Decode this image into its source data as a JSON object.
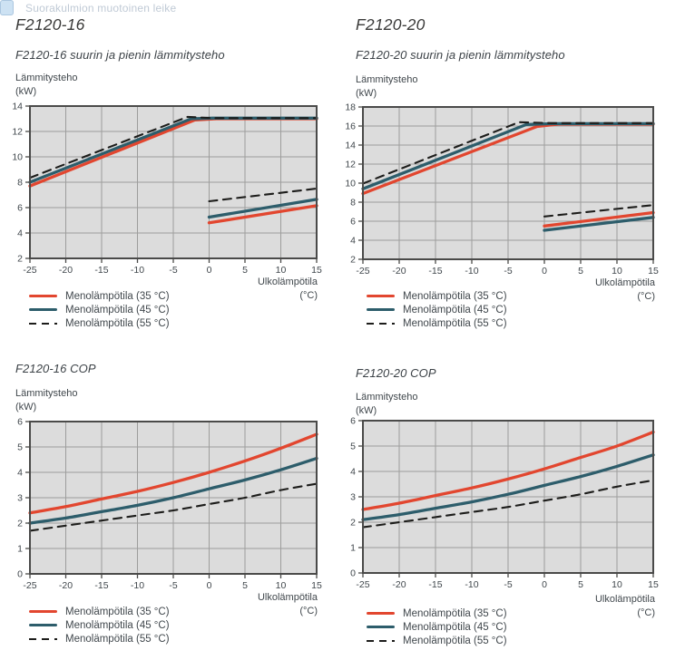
{
  "watermark": {
    "text": "Suorakulmion muotoinen leike"
  },
  "colors": {
    "red": "#e2462f",
    "teal": "#2d5d6b",
    "black": "#1d1d1b",
    "grid": "#9d9d9c",
    "plot_bg": "#dcdcdc",
    "axis": "#4a4a49",
    "text": "#40474c"
  },
  "chart_data": [
    {
      "id": "f2120-16-output",
      "type": "line",
      "heading": "F2120-16",
      "title": "F2120-16 suurin ja pienin lämmitysteho",
      "ylabel": [
        "Lämmitysteho",
        "(kW)"
      ],
      "xlabel": [
        "Ulkolämpötila",
        "(°C)"
      ],
      "x_range": [
        -25,
        15
      ],
      "y_range": [
        2,
        14
      ],
      "x_ticks": [
        -25,
        -20,
        -15,
        -10,
        -5,
        0,
        5,
        10,
        15
      ],
      "y_ticks": [
        2,
        4,
        6,
        8,
        10,
        12,
        14
      ],
      "grid": true,
      "legend_position": "bottom-left",
      "series": [
        {
          "name": "Menolämpötila (35 °C)",
          "color_key": "red",
          "dash": false,
          "smooth": false,
          "segments": [
            [
              [
                -25,
                7.7
              ],
              [
                -2,
                12.9
              ],
              [
                1,
                13.0
              ],
              [
                15,
                13.0
              ]
            ],
            [
              [
                0,
                4.8
              ],
              [
                15,
                6.15
              ]
            ]
          ]
        },
        {
          "name": "Menolämpötila (45 °C)",
          "color_key": "teal",
          "dash": false,
          "smooth": false,
          "segments": [
            [
              [
                -25,
                8.0
              ],
              [
                -2.5,
                13.0
              ],
              [
                0.5,
                13.05
              ],
              [
                15,
                13.05
              ]
            ],
            [
              [
                0,
                5.25
              ],
              [
                15,
                6.65
              ]
            ]
          ]
        },
        {
          "name": "Menolämpötila (55 °C)",
          "color_key": "black",
          "dash": true,
          "smooth": false,
          "segments": [
            [
              [
                -25,
                8.35
              ],
              [
                -3,
                13.15
              ],
              [
                0.5,
                13.05
              ],
              [
                15,
                13.05
              ]
            ],
            [
              [
                0,
                6.5
              ],
              [
                15,
                7.5
              ]
            ]
          ]
        }
      ]
    },
    {
      "id": "f2120-20-output",
      "type": "line",
      "heading": "F2120-20",
      "title": "F2120-20 suurin ja pienin lämmitysteho",
      "ylabel": [
        "Lämmitysteho",
        "(kW)"
      ],
      "xlabel": [
        "Ulkolämpötila",
        "(°C)"
      ],
      "x_range": [
        -25,
        15
      ],
      "y_range": [
        2,
        18
      ],
      "x_ticks": [
        -25,
        -20,
        -15,
        -10,
        -5,
        0,
        5,
        10,
        15
      ],
      "y_ticks": [
        2,
        4,
        6,
        8,
        10,
        12,
        14,
        16,
        18
      ],
      "grid": true,
      "legend_position": "bottom-left",
      "series": [
        {
          "name": "Menolämpötila (35 °C)",
          "color_key": "red",
          "dash": false,
          "smooth": false,
          "segments": [
            [
              [
                -25,
                8.9
              ],
              [
                -1,
                15.95
              ],
              [
                2,
                16.2
              ],
              [
                15,
                16.2
              ]
            ],
            [
              [
                0,
                5.5
              ],
              [
                15,
                6.9
              ]
            ]
          ]
        },
        {
          "name": "Menolämpötila (45 °C)",
          "color_key": "teal",
          "dash": false,
          "smooth": false,
          "segments": [
            [
              [
                -25,
                9.4
              ],
              [
                -2.5,
                16.15
              ],
              [
                1,
                16.25
              ],
              [
                15,
                16.25
              ]
            ],
            [
              [
                0,
                5.05
              ],
              [
                15,
                6.4
              ]
            ]
          ]
        },
        {
          "name": "Menolämpötila (55 °C)",
          "color_key": "black",
          "dash": true,
          "smooth": false,
          "segments": [
            [
              [
                -25,
                9.95
              ],
              [
                -3.5,
                16.4
              ],
              [
                1,
                16.3
              ],
              [
                15,
                16.3
              ]
            ],
            [
              [
                0,
                6.5
              ],
              [
                15,
                7.7
              ]
            ]
          ]
        }
      ]
    },
    {
      "id": "f2120-16-cop",
      "type": "line",
      "title": "F2120-16 COP",
      "ylabel": [
        "Lämmitysteho",
        "(kW)"
      ],
      "xlabel": [
        "Ulkolämpötila",
        "(°C)"
      ],
      "x_range": [
        -25,
        15
      ],
      "y_range": [
        0,
        6
      ],
      "x_ticks": [
        -25,
        -20,
        -15,
        -10,
        -5,
        0,
        5,
        10,
        15
      ],
      "y_ticks": [
        0,
        1,
        2,
        3,
        4,
        5,
        6
      ],
      "grid": true,
      "legend_position": "bottom-left",
      "series": [
        {
          "name": "Menolämpötila (35 °C)",
          "color_key": "red",
          "dash": false,
          "smooth": true,
          "segments": [
            [
              [
                -25,
                2.4
              ],
              [
                -20,
                2.65
              ],
              [
                -15,
                2.95
              ],
              [
                -10,
                3.25
              ],
              [
                -5,
                3.6
              ],
              [
                0,
                4.0
              ],
              [
                5,
                4.45
              ],
              [
                10,
                4.95
              ],
              [
                15,
                5.5
              ]
            ]
          ]
        },
        {
          "name": "Menolämpötila (45 °C)",
          "color_key": "teal",
          "dash": false,
          "smooth": true,
          "segments": [
            [
              [
                -25,
                2.0
              ],
              [
                -20,
                2.2
              ],
              [
                -15,
                2.45
              ],
              [
                -10,
                2.7
              ],
              [
                -5,
                3.0
              ],
              [
                0,
                3.35
              ],
              [
                5,
                3.7
              ],
              [
                10,
                4.1
              ],
              [
                15,
                4.55
              ]
            ]
          ]
        },
        {
          "name": "Menolämpötila (55 °C)",
          "color_key": "black",
          "dash": true,
          "smooth": true,
          "segments": [
            [
              [
                -25,
                1.7
              ],
              [
                -20,
                1.9
              ],
              [
                -15,
                2.1
              ],
              [
                -10,
                2.3
              ],
              [
                -5,
                2.5
              ],
              [
                0,
                2.75
              ],
              [
                5,
                3.0
              ],
              [
                10,
                3.3
              ],
              [
                15,
                3.55
              ]
            ]
          ]
        }
      ]
    },
    {
      "id": "f2120-20-cop",
      "type": "line",
      "title": "F2120-20 COP",
      "ylabel": [
        "Lämmitysteho",
        "(kW)"
      ],
      "xlabel": [
        "Ulkolämpötila",
        "(°C)"
      ],
      "x_range": [
        -25,
        15
      ],
      "y_range": [
        0,
        6
      ],
      "x_ticks": [
        -25,
        -20,
        -15,
        -10,
        -5,
        0,
        5,
        10,
        15
      ],
      "y_ticks": [
        0,
        1,
        2,
        3,
        4,
        5,
        6
      ],
      "grid": true,
      "legend_position": "bottom-left",
      "series": [
        {
          "name": "Menolämpötila (35 °C)",
          "color_key": "red",
          "dash": false,
          "smooth": true,
          "segments": [
            [
              [
                -25,
                2.5
              ],
              [
                -20,
                2.75
              ],
              [
                -15,
                3.05
              ],
              [
                -10,
                3.35
              ],
              [
                -5,
                3.7
              ],
              [
                0,
                4.1
              ],
              [
                5,
                4.55
              ],
              [
                10,
                5.0
              ],
              [
                15,
                5.55
              ]
            ]
          ]
        },
        {
          "name": "Menolämpötila (45 °C)",
          "color_key": "teal",
          "dash": false,
          "smooth": true,
          "segments": [
            [
              [
                -25,
                2.1
              ],
              [
                -20,
                2.3
              ],
              [
                -15,
                2.55
              ],
              [
                -10,
                2.8
              ],
              [
                -5,
                3.1
              ],
              [
                0,
                3.45
              ],
              [
                5,
                3.8
              ],
              [
                10,
                4.2
              ],
              [
                15,
                4.65
              ]
            ]
          ]
        },
        {
          "name": "Menolämpötila (55 °C)",
          "color_key": "black",
          "dash": true,
          "smooth": true,
          "segments": [
            [
              [
                -25,
                1.8
              ],
              [
                -20,
                2.0
              ],
              [
                -15,
                2.2
              ],
              [
                -10,
                2.4
              ],
              [
                -5,
                2.6
              ],
              [
                0,
                2.85
              ],
              [
                5,
                3.1
              ],
              [
                10,
                3.4
              ],
              [
                15,
                3.65
              ]
            ]
          ]
        }
      ]
    }
  ]
}
